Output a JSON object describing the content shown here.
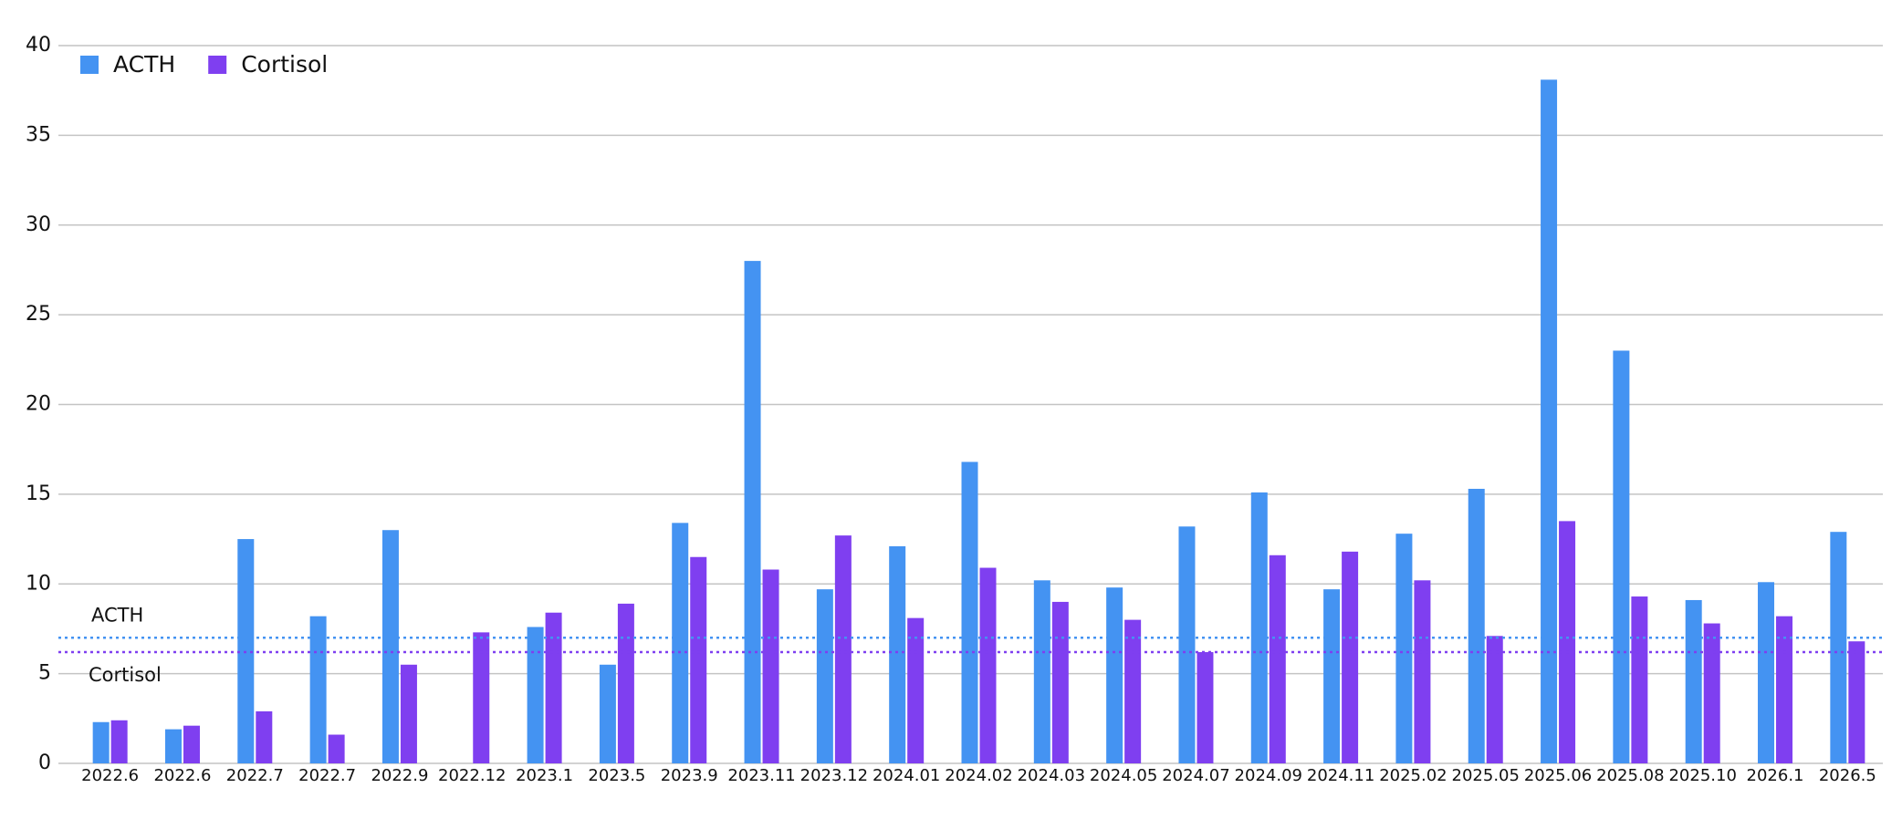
{
  "chart_data": {
    "type": "bar",
    "categories": [
      "2022.6",
      "2022.6",
      "2022.7",
      "2022.7",
      "2022.9",
      "2022.12",
      "2023.1",
      "2023.5",
      "2023.9",
      "2023.11",
      "2023.12",
      "2024.01",
      "2024.02",
      "2024.03",
      "2024.05",
      "2024.07",
      "2024.09",
      "2024.11",
      "2025.02",
      "2025.05",
      "2025.06",
      "2025.08",
      "2025.10",
      "2026.1",
      "2026.5"
    ],
    "series": [
      {
        "name": "ACTH",
        "color": "#4493f2",
        "values": [
          2.3,
          1.9,
          12.5,
          8.2,
          13.0,
          null,
          7.6,
          5.5,
          13.4,
          28.0,
          9.7,
          12.1,
          16.8,
          10.2,
          9.8,
          13.2,
          15.1,
          9.7,
          12.8,
          15.3,
          38.1,
          23.0,
          9.1,
          10.1,
          12.9
        ]
      },
      {
        "name": "Cortisol",
        "color": "#7f3ff0",
        "values": [
          2.4,
          2.1,
          2.9,
          1.6,
          5.5,
          7.3,
          8.4,
          8.9,
          11.5,
          10.8,
          12.7,
          8.1,
          10.9,
          9.0,
          8.0,
          6.2,
          11.6,
          11.8,
          10.2,
          7.1,
          13.5,
          9.3,
          7.8,
          8.2,
          6.8
        ]
      }
    ],
    "reference_lines": [
      {
        "label": "ACTH",
        "value": 7.0,
        "color": "#4493f2"
      },
      {
        "label": "Cortisol",
        "value": 6.2,
        "color": "#7f3ff0"
      }
    ],
    "ylim": [
      0,
      40
    ],
    "yticks": [
      0,
      5,
      10,
      15,
      20,
      25,
      30,
      35,
      40
    ],
    "grid": true,
    "legend": "top-left"
  }
}
